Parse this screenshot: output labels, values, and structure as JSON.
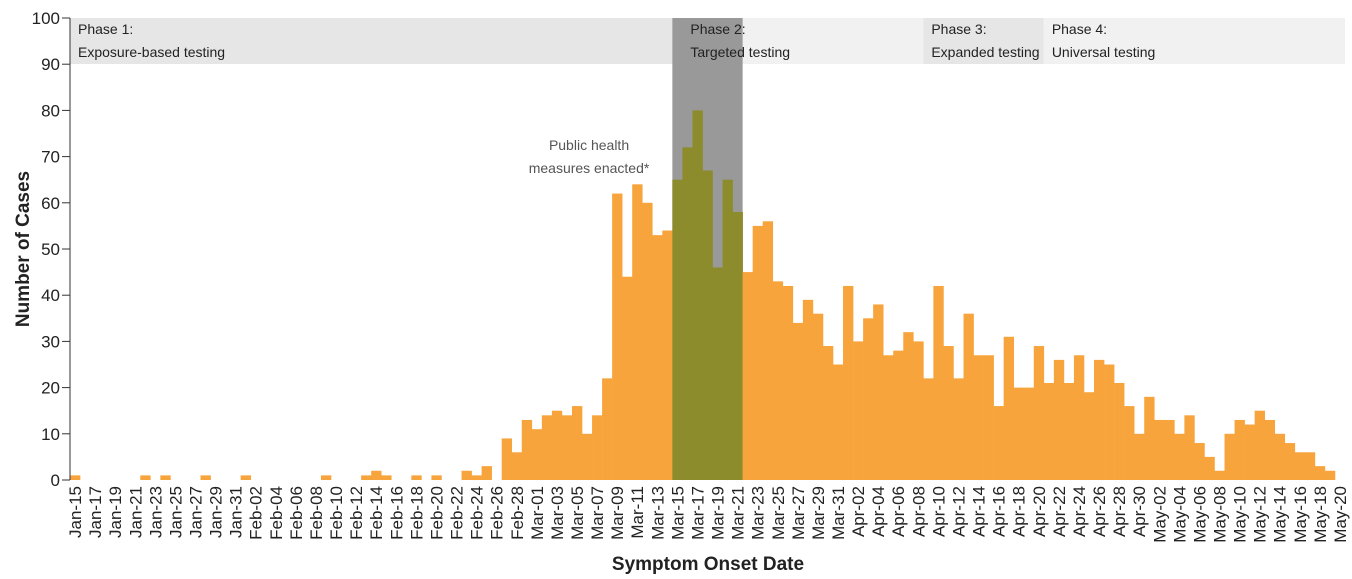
{
  "chart_data": {
    "type": "bar",
    "x_label": "Symptom Onset Date",
    "y_label": "Number of Cases",
    "categories": [
      "Jan-15",
      null,
      "Jan-17",
      null,
      "Jan-19",
      null,
      "Jan-21",
      null,
      "Jan-23",
      null,
      "Jan-25",
      null,
      "Jan-27",
      null,
      "Jan-29",
      null,
      "Jan-31",
      null,
      "Feb-02",
      null,
      "Feb-04",
      null,
      "Feb-06",
      null,
      "Feb-08",
      null,
      "Feb-10",
      null,
      "Feb-12",
      null,
      "Feb-14",
      null,
      "Feb-16",
      null,
      "Feb-18",
      null,
      "Feb-20",
      null,
      "Feb-22",
      null,
      "Feb-24",
      null,
      "Feb-26",
      null,
      "Feb-28",
      null,
      "Mar-01",
      null,
      "Mar-03",
      null,
      "Mar-05",
      null,
      "Mar-07",
      null,
      "Mar-09",
      null,
      "Mar-11",
      null,
      "Mar-13",
      null,
      "Mar-15",
      null,
      "Mar-17",
      null,
      "Mar-19",
      null,
      "Mar-21",
      null,
      "Mar-23",
      null,
      "Mar-25",
      null,
      "Mar-27",
      null,
      "Mar-29",
      null,
      "Mar-31",
      null,
      "Apr-02",
      null,
      "Apr-04",
      null,
      "Apr-06",
      null,
      "Apr-08",
      null,
      "Apr-10",
      null,
      "Apr-12",
      null,
      "Apr-14",
      null,
      "Apr-16",
      null,
      "Apr-18",
      null,
      "Apr-20",
      null,
      "Apr-22",
      null,
      "Apr-24",
      null,
      "Apr-26",
      null,
      "Apr-28",
      null,
      "Apr-30",
      null,
      "May-02",
      null,
      "May-04",
      null,
      "May-06",
      null,
      "May-08",
      null,
      "May-10",
      null,
      "May-12",
      null,
      "May-14",
      null,
      "May-16",
      null,
      "May-18",
      null,
      "May-20"
    ],
    "values": [
      1,
      0,
      0,
      0,
      0,
      0,
      0,
      1,
      0,
      1,
      0,
      0,
      0,
      1,
      0,
      0,
      0,
      1,
      0,
      0,
      0,
      0,
      0,
      0,
      0,
      1,
      0,
      0,
      0,
      1,
      2,
      1,
      0,
      0,
      1,
      0,
      1,
      0,
      0,
      2,
      1,
      3,
      0,
      9,
      6,
      13,
      11,
      14,
      15,
      14,
      16,
      10,
      14,
      22,
      62,
      44,
      64,
      60,
      53,
      54,
      65,
      72,
      80,
      67,
      46,
      65,
      58,
      45,
      55,
      56,
      43,
      42,
      34,
      39,
      36,
      29,
      25,
      42,
      30,
      35,
      38,
      27,
      28,
      32,
      30,
      22,
      42,
      29,
      22,
      36,
      27,
      27,
      16,
      31,
      20,
      20,
      29,
      21,
      26,
      21,
      27,
      19,
      26,
      25,
      21,
      16,
      10,
      18,
      13,
      13,
      10,
      14,
      8,
      5,
      2,
      10,
      13,
      12,
      15,
      13,
      10,
      8,
      6,
      6,
      3,
      2,
      0
    ],
    "color": "#f8a43c",
    "highlight": {
      "from": "Mar-15",
      "to": "Mar-21",
      "color": "#999999",
      "bar_color": "#8c8c2c"
    },
    "annotation": [
      "Public health",
      "measures enacted*"
    ],
    "phases": [
      {
        "title": "Phase 1:",
        "subtitle": "Exposure-based testing",
        "color": "#e6e6e6"
      },
      {
        "title": "Phase 2:",
        "subtitle": "Targeted testing",
        "after": "Mar-15",
        "color": "#f1f1f1"
      },
      {
        "title": "Phase 3:",
        "subtitle": "Expanded testing",
        "after": "Apr-08",
        "color": "#e6e6e6"
      },
      {
        "title": "Phase 4:",
        "subtitle": "Universal testing",
        "after": "Apr-20",
        "color": "#f1f1f1"
      }
    ],
    "ylim": [
      0,
      100
    ],
    "yticks": [
      0,
      10,
      20,
      30,
      40,
      50,
      60,
      70,
      80,
      90,
      100
    ]
  }
}
